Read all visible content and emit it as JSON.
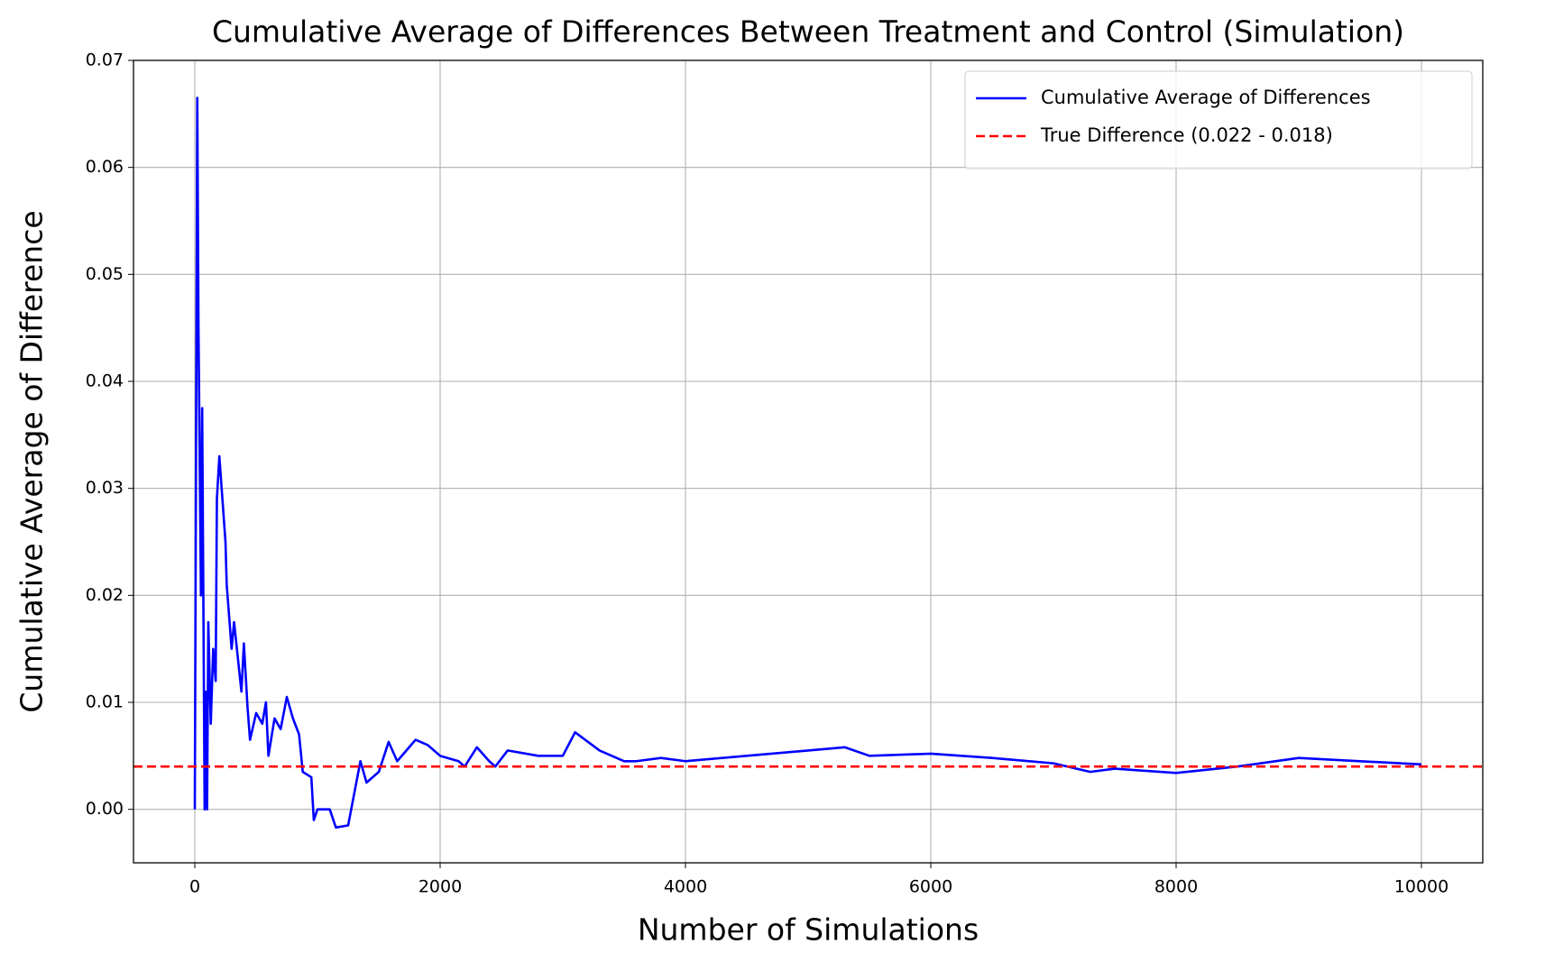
{
  "chart_data": {
    "type": "line",
    "title": "Cumulative Average of Differences Between Treatment and Control (Simulation)",
    "xlabel": "Number of Simulations",
    "ylabel": "Cumulative Average of Difference",
    "x": [
      0,
      20,
      30,
      50,
      60,
      70,
      80,
      90,
      100,
      110,
      130,
      150,
      170,
      180,
      200,
      250,
      260,
      300,
      320,
      380,
      400,
      430,
      450,
      500,
      550,
      580,
      600,
      650,
      700,
      750,
      800,
      850,
      880,
      950,
      970,
      1000,
      1100,
      1150,
      1250,
      1300,
      1350,
      1400,
      1500,
      1580,
      1650,
      1800,
      1900,
      2000,
      2150,
      2200,
      2300,
      2400,
      2450,
      2550,
      2800,
      3000,
      3100,
      3300,
      3500,
      3600,
      3800,
      4000,
      4500,
      5000,
      5300,
      5500,
      6000,
      6500,
      7000,
      7300,
      7500,
      8000,
      8500,
      9000,
      9500,
      10000
    ],
    "series": [
      {
        "name": "Cumulative Average of Differences",
        "color": "#0000ff",
        "values": [
          0,
          0.0665,
          0.045,
          0.02,
          0.0375,
          0.019,
          0,
          0.011,
          0,
          0.0175,
          0.008,
          0.015,
          0.012,
          0.029,
          0.033,
          0.025,
          0.021,
          0.015,
          0.0175,
          0.011,
          0.0155,
          0.0095,
          0.0065,
          0.009,
          0.008,
          0.01,
          0.005,
          0.0085,
          0.0075,
          0.0105,
          0.0085,
          0.007,
          0.0035,
          0.003,
          -0.001,
          0,
          0,
          -0.0017,
          -0.0015,
          0.0015,
          0.0045,
          0.0025,
          0.0035,
          0.0063,
          0.0045,
          0.0065,
          0.006,
          0.005,
          0.0045,
          0.004,
          0.0058,
          0.0045,
          0.004,
          0.0055,
          0.005,
          0.005,
          0.0072,
          0.0055,
          0.0045,
          0.0045,
          0.0048,
          0.0045,
          0.005,
          0.0055,
          0.0058,
          0.005,
          0.0052,
          0.0048,
          0.0043,
          0.0035,
          0.0038,
          0.0034,
          0.004,
          0.0048,
          0.0045,
          0.0042
        ]
      }
    ],
    "reference_line": {
      "name": "True Difference (0.022 - 0.018)",
      "color": "#ff0000",
      "value": 0.004
    },
    "xlim": [
      -500,
      10500
    ],
    "ylim": [
      -0.005,
      0.07
    ],
    "xticks": [
      0,
      2000,
      4000,
      6000,
      8000,
      10000
    ],
    "yticks": [
      {
        "value": 0,
        "label": "0.00"
      },
      0.01,
      0.02,
      0.03,
      0.04,
      0.05,
      0.06,
      0.07
    ],
    "grid": true,
    "legend": "upper right"
  }
}
